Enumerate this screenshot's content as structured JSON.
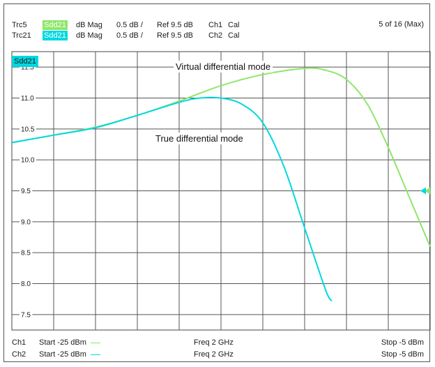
{
  "header": {
    "traces": [
      {
        "name": "Trc5",
        "param": "Sdd21",
        "format": "dB Mag",
        "scale": "0.5 dB /",
        "ref": "Ref 9.5 dB",
        "channel": "Ch1",
        "cal": "Cal",
        "color": "#8ee66a"
      },
      {
        "name": "Trc21",
        "param": "Sdd21",
        "format": "dB Mag",
        "scale": "0.5 dB /",
        "ref": "Ref 9.5 dB",
        "channel": "Ch2",
        "cal": "Cal",
        "color": "#00d8e0"
      }
    ],
    "count": "5 of 16 (Max)"
  },
  "plot_title": "Sdd21",
  "annotations": {
    "virtual": "Virtual differential mode",
    "true": "True differential mode"
  },
  "footer": {
    "rows": [
      {
        "ch": "Ch1",
        "start": "Start -25 dBm",
        "freq": "Freq 2 GHz",
        "stop": "Stop -5 dBm",
        "color": "#8ee66a"
      },
      {
        "ch": "Ch2",
        "start": "Start -25 dBm",
        "freq": "Freq 2 GHz",
        "stop": "Stop -5 dBm",
        "color": "#00d8e0"
      }
    ]
  },
  "chart_data": {
    "type": "line",
    "title": "Sdd21",
    "xlabel": "",
    "ylabel": "",
    "x_unit": "dBm",
    "xlim": [
      -25,
      -5
    ],
    "ylim": [
      7.25,
      11.75
    ],
    "y_ticks": [
      7.5,
      8.0,
      8.5,
      9.0,
      9.5,
      10.0,
      10.5,
      11.0,
      11.5
    ],
    "y_tick_labels": [
      "7.5",
      "8.0",
      "8.5",
      "9.0",
      "9.5",
      "10.0",
      "10.5",
      "11.0",
      "11.5"
    ],
    "x_divisions": 10,
    "grid": true,
    "reference_level": 9.5,
    "series": [
      {
        "name": "Trc5",
        "color": "#8ee66a",
        "x": [
          -25,
          -23,
          -21,
          -19,
          -17,
          -15,
          -13,
          -11,
          -10,
          -9,
          -8,
          -7,
          -6,
          -5
        ],
        "y": [
          10.28,
          10.4,
          10.53,
          10.72,
          10.95,
          11.2,
          11.38,
          11.48,
          11.45,
          11.3,
          10.9,
          10.2,
          9.4,
          8.6
        ]
      },
      {
        "name": "Trc21",
        "color": "#00d8e0",
        "x": [
          -25,
          -23,
          -21,
          -19,
          -17,
          -16,
          -15,
          -14,
          -13,
          -12,
          -11,
          -10,
          -9.7
        ],
        "y": [
          10.28,
          10.4,
          10.52,
          10.72,
          10.93,
          11.0,
          11.0,
          10.9,
          10.6,
          9.9,
          8.9,
          7.9,
          7.72
        ]
      }
    ]
  }
}
